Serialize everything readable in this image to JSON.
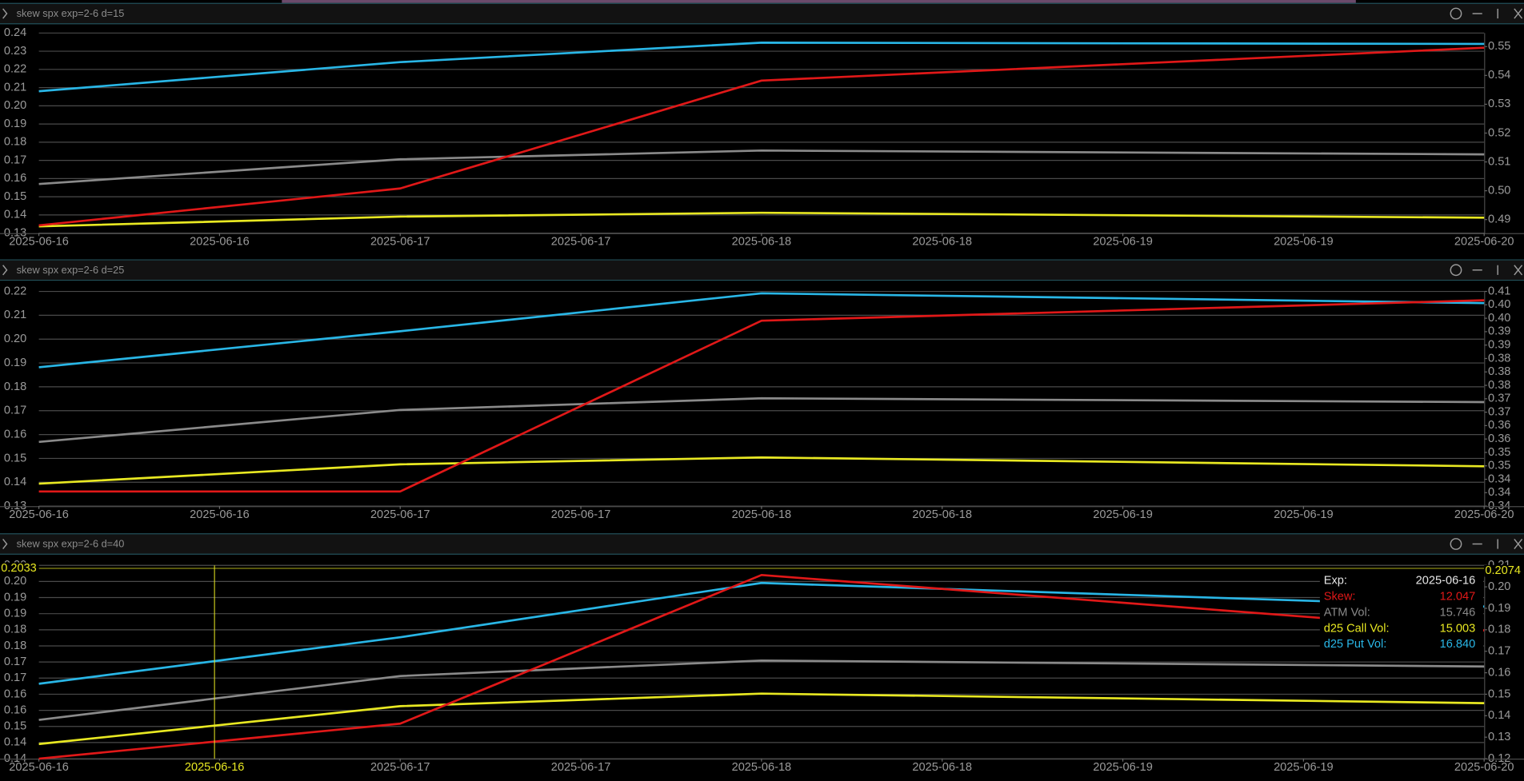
{
  "chart_data": [
    {
      "type": "line",
      "title": "skew spx exp=2-6 d=15",
      "grid": true,
      "x": [
        "2025-06-16",
        "2025-06-17",
        "2025-06-18",
        "2025-06-20"
      ],
      "xlim": [
        "2025-06-16",
        "2025-06-20"
      ],
      "xticks": [
        "2025-06-16",
        {
          "value": "2025-06-16T12:00",
          "label": "2025-06-16"
        },
        "2025-06-17",
        {
          "value": "2025-06-17T12:00",
          "label": "2025-06-17"
        },
        "2025-06-18",
        {
          "value": "2025-06-18T12:00",
          "label": "2025-06-18"
        },
        "2025-06-19",
        {
          "value": "2025-06-19T12:00",
          "label": "2025-06-19"
        },
        "2025-06-20"
      ],
      "ylim": [
        0.13,
        0.24
      ],
      "yticks": [
        0.13,
        0.14,
        0.15,
        0.16,
        0.17,
        0.18,
        0.19,
        {
          "value": 0.2,
          "label": "0.20"
        },
        0.21,
        0.22,
        0.23,
        0.24
      ],
      "y2lim": [
        0.4853,
        0.5547
      ],
      "y2ticks": [
        0.49,
        {
          "value": 0.5,
          "label": "0.50"
        },
        0.51,
        0.52,
        0.53,
        0.54,
        0.55
      ],
      "series": [
        {
          "color": "#29b6e6",
          "values": [
            0.208,
            0.224,
            0.2347,
            0.234
          ]
        },
        {
          "color": "#8a8a8a",
          "values": [
            0.157,
            0.1706,
            0.1754,
            0.1733
          ]
        },
        {
          "color": "#e8e822",
          "values": [
            0.1337,
            0.1391,
            0.1412,
            0.1385
          ]
        },
        {
          "color": "#e01818",
          "axis": "y2",
          "values": [
            0.488,
            0.5008,
            0.5382,
            0.5496
          ]
        }
      ]
    },
    {
      "type": "line",
      "title": "skew spx exp=2-6 d=25",
      "grid": true,
      "x": [
        "2025-06-16",
        "2025-06-17",
        "2025-06-18",
        "2025-06-20"
      ],
      "xlim": [
        "2025-06-16",
        "2025-06-20"
      ],
      "xticks": [
        "2025-06-16",
        {
          "value": "2025-06-16T12:00",
          "label": "2025-06-16"
        },
        "2025-06-17",
        {
          "value": "2025-06-17T12:00",
          "label": "2025-06-17"
        },
        "2025-06-18",
        {
          "value": "2025-06-18T12:00",
          "label": "2025-06-18"
        },
        "2025-06-19",
        {
          "value": "2025-06-19T12:00",
          "label": "2025-06-19"
        },
        "2025-06-20"
      ],
      "ylim": [
        0.13,
        0.22
      ],
      "yticks": [
        0.13,
        0.14,
        0.15,
        0.16,
        0.17,
        0.18,
        0.19,
        {
          "value": 0.2,
          "label": "0.20"
        },
        0.21,
        0.22
      ],
      "y2lim": [
        0.336,
        0.4064
      ],
      "y2ticks": [
        {
          "value": 0.336,
          "label": "0.34"
        },
        {
          "value": 0.3404,
          "label": "0.34"
        },
        {
          "value": 0.3448,
          "label": "0.34"
        },
        {
          "value": 0.3492,
          "label": "0.35"
        },
        {
          "value": 0.3536,
          "label": "0.35"
        },
        {
          "value": 0.358,
          "label": "0.36"
        },
        {
          "value": 0.3624,
          "label": "0.36"
        },
        {
          "value": 0.3668,
          "label": "0.37"
        },
        {
          "value": 0.3712,
          "label": "0.37"
        },
        {
          "value": 0.3756,
          "label": "0.38"
        },
        {
          "value": 0.38,
          "label": "0.38"
        },
        {
          "value": 0.3844,
          "label": "0.38"
        },
        {
          "value": 0.3888,
          "label": "0.39"
        },
        {
          "value": 0.3932,
          "label": "0.39"
        },
        {
          "value": 0.3976,
          "label": "0.40"
        },
        {
          "value": 0.402,
          "label": "0.40"
        },
        {
          "value": 0.4064,
          "label": "0.41"
        }
      ],
      "series": [
        {
          "color": "#29b6e6",
          "values": [
            0.1882,
            0.2033,
            0.2192,
            0.2151
          ]
        },
        {
          "color": "#8a8a8a",
          "values": [
            0.1569,
            0.1703,
            0.1752,
            0.1736
          ]
        },
        {
          "color": "#e8e822",
          "values": [
            0.1394,
            0.1475,
            0.1504,
            0.1467
          ]
        },
        {
          "color": "#e01818",
          "axis": "y2",
          "values": [
            0.3408,
            0.3408,
            0.3968,
            0.4035
          ]
        }
      ]
    },
    {
      "type": "line",
      "title": "skew spx exp=2-6 d=40",
      "grid": true,
      "x": [
        "2025-06-16",
        "2025-06-17",
        "2025-06-18",
        "2025-06-20"
      ],
      "xlim": [
        "2025-06-16",
        "2025-06-20"
      ],
      "xticks": [
        "2025-06-16",
        {
          "value": "2025-06-16T12:00",
          "label": "2025-06-16"
        },
        "2025-06-17",
        {
          "value": "2025-06-17T12:00",
          "label": "2025-06-17"
        },
        "2025-06-18",
        {
          "value": "2025-06-18T12:00",
          "label": "2025-06-18"
        },
        "2025-06-19",
        {
          "value": "2025-06-19T12:00",
          "label": "2025-06-19"
        },
        "2025-06-20"
      ],
      "ylim": [
        0.1395,
        0.2043
      ],
      "yticks": [
        {
          "value": 0.1395,
          "label": "0.14"
        },
        {
          "value": 0.1449,
          "label": "0.14"
        },
        {
          "value": 0.1503,
          "label": "0.15"
        },
        {
          "value": 0.1557,
          "label": "0.16"
        },
        {
          "value": 0.1611,
          "label": "0.16"
        },
        {
          "value": 0.1665,
          "label": "0.17"
        },
        {
          "value": 0.1719,
          "label": "0.17"
        },
        {
          "value": 0.1773,
          "label": "0.18"
        },
        {
          "value": 0.1827,
          "label": "0.18"
        },
        {
          "value": 0.1881,
          "label": "0.19"
        },
        {
          "value": 0.1935,
          "label": "0.19"
        },
        {
          "value": 0.1989,
          "label": "0.20"
        },
        {
          "value": 0.2043,
          "label": "0.20"
        }
      ],
      "y2lim": [
        0.12,
        0.21
      ],
      "y2ticks": [
        0.12,
        0.13,
        0.14,
        0.15,
        0.16,
        0.17,
        0.18,
        0.19,
        {
          "value": 0.2,
          "label": "0.20"
        },
        0.21
      ],
      "series": [
        {
          "color": "#29b6e6",
          "values": [
            0.1646,
            0.1802,
            0.1984,
            0.1905
          ]
        },
        {
          "color": "#8a8a8a",
          "values": [
            0.1525,
            0.1672,
            0.1724,
            0.1704
          ]
        },
        {
          "color": "#e8e822",
          "values": [
            0.1444,
            0.1571,
            0.1613,
            0.1581
          ]
        },
        {
          "color": "#e01818",
          "axis": "y2",
          "values": [
            0.12,
            0.1363,
            0.2055,
            0.1797
          ]
        }
      ],
      "crosshair": {
        "x": {
          "value": "2025-06-16T11:40",
          "label": "2025-06-16"
        },
        "y": 0.2033,
        "y2": 0.2074,
        "color": "#e8e822"
      },
      "tooltip": {
        "rows": [
          {
            "label": "Exp:",
            "value": "2025-06-16",
            "color": "#e6e6e6"
          },
          {
            "label": "Skew:",
            "value": "12.047",
            "color": "#e01818"
          },
          {
            "label": "ATM Vol:",
            "value": "15.746",
            "color": "#8a8a8a"
          },
          {
            "label": "d25 Call Vol:",
            "value": "15.003",
            "color": "#e8e822"
          },
          {
            "label": "d25 Put Vol:",
            "value": "16.840",
            "color": "#29b6e6"
          }
        ]
      }
    }
  ]
}
